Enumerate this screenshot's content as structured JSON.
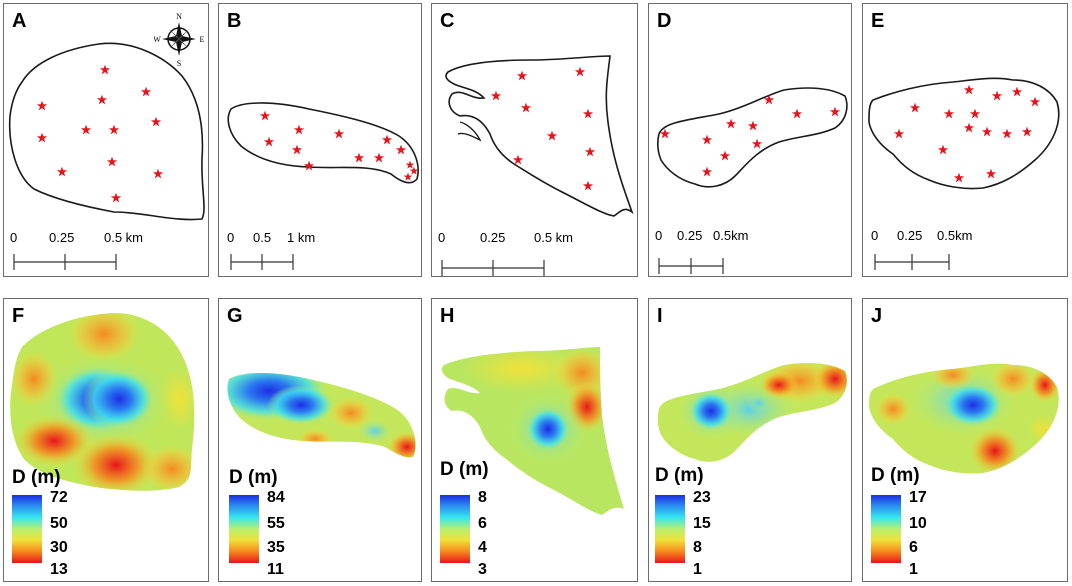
{
  "panels_top": [
    {
      "id": "A",
      "scale": [
        "0",
        "0.25",
        "0.5 km"
      ]
    },
    {
      "id": "B",
      "scale": [
        "0",
        "0.5",
        "1 km"
      ]
    },
    {
      "id": "C",
      "scale": [
        "0",
        "0.25",
        "0.5 km"
      ]
    },
    {
      "id": "D",
      "scale": [
        "0",
        "0.25",
        "0.5km"
      ]
    },
    {
      "id": "E",
      "scale": [
        "0",
        "0.25",
        "0.5km"
      ]
    }
  ],
  "panels_bottom": [
    {
      "id": "F",
      "title": "D (m)",
      "ticks": [
        "72",
        "50",
        "30",
        "13"
      ]
    },
    {
      "id": "G",
      "title": "D (m)",
      "ticks": [
        "84",
        "55",
        "35",
        "11"
      ]
    },
    {
      "id": "H",
      "title": "D (m)",
      "ticks": [
        "8",
        "6",
        "4",
        "3"
      ]
    },
    {
      "id": "I",
      "title": "D (m)",
      "ticks": [
        "23",
        "15",
        "8",
        "1"
      ]
    },
    {
      "id": "J",
      "title": "D (m)",
      "ticks": [
        "17",
        "10",
        "6",
        "1"
      ]
    }
  ],
  "compass": {
    "n": "N",
    "s": "S",
    "e": "E",
    "w": "W"
  },
  "colors": {
    "star": "#e8141b",
    "outline": "#1a1a1a"
  }
}
